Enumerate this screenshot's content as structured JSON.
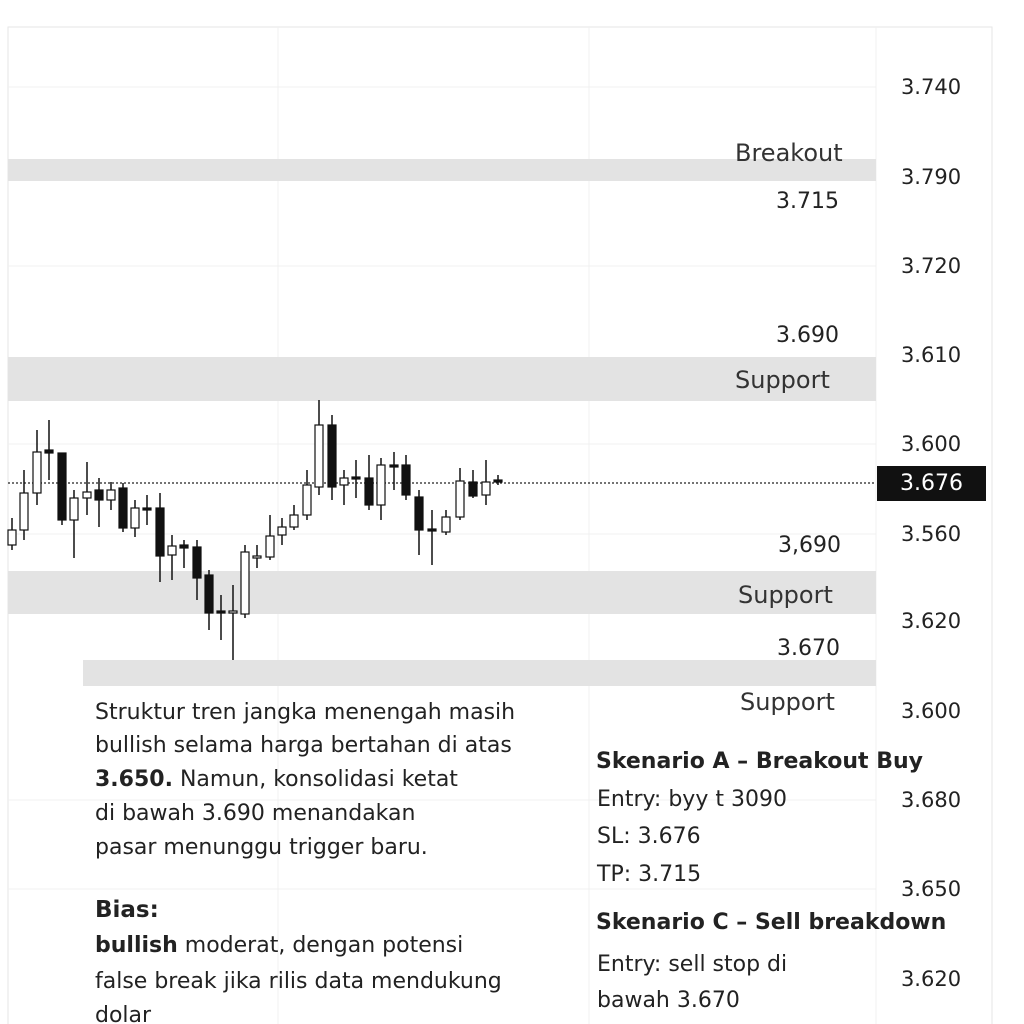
{
  "axis_labels": [
    "3.740",
    "3.790",
    "3.720",
    "3.610",
    "3.600",
    "3.560",
    "3.620",
    "3.600",
    "3.680",
    "3.650",
    "3.620"
  ],
  "current_price": "3.676",
  "zones": [
    {
      "label": "Breakout",
      "price": "3.715"
    },
    {
      "price": "3.690",
      "label": "Support"
    },
    {
      "price": "3,690",
      "label": "Support"
    },
    {
      "price": "3.670",
      "label": "Support"
    }
  ],
  "analysis": {
    "line1": "Struktur tren jangka menengah masih",
    "line2": "bullish selama harga bertahan di atas",
    "line3_bold": "3.650.",
    "line3": " Namun, konsolidasi ketat",
    "line4": "di bawah 3.690 menandakan",
    "line5": "pasar menunggu trigger baru.",
    "bias_title": "Bias:",
    "bias_bold": "bullish",
    "bias_line1": " moderat, dengan potensi",
    "bias_line2": "false break jika rilis data mendukung",
    "bias_line3": "dolar"
  },
  "scenario_a": {
    "title": "Skenario A – Breakout Buy",
    "entry": "Entry: byy t 3090",
    "sl": "SL: 3.676",
    "tp": "TP: 3.715"
  },
  "scenario_c": {
    "title": "Skenario C – Sell breakdown",
    "entry": "Entry: sell stop di",
    "entry2": "bawah 3.670"
  }
}
